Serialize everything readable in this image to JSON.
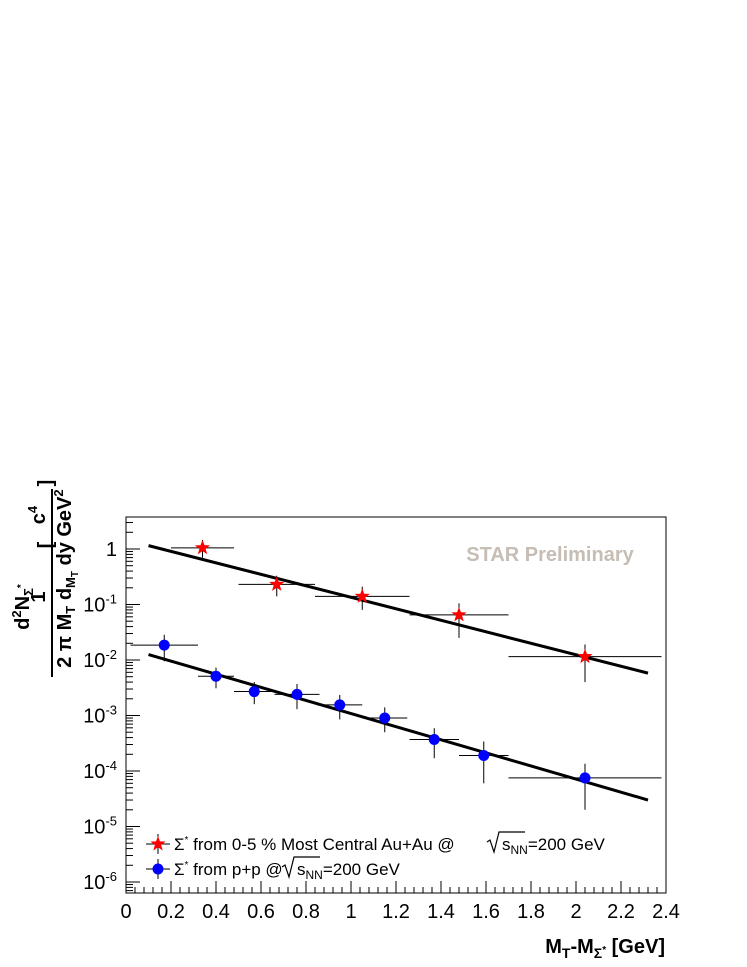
{
  "chart_data": {
    "type": "scatter",
    "title": "",
    "xlabel": "M_T-M_Σ* [GeV]",
    "ylabel": "1/(2π M_T) d²N_Σ*/(dM_T dy) [c⁴/GeV²]",
    "xlim": [
      0,
      2.4
    ],
    "ylim": [
      5e-07,
      4
    ],
    "log_y": true,
    "grid": false,
    "legend_position": "bottom-left",
    "x_ticks": [
      "0",
      "0.2",
      "0.4",
      "0.6",
      "0.8",
      "1",
      "1.2",
      "1.4",
      "1.6",
      "1.8",
      "2",
      "2.2",
      "2.4"
    ],
    "y_ticks": [
      {
        "base": "1",
        "exp": ""
      },
      {
        "base": "10",
        "exp": "-1"
      },
      {
        "base": "10",
        "exp": "-2"
      },
      {
        "base": "10",
        "exp": "-3"
      },
      {
        "base": "10",
        "exp": "-4"
      },
      {
        "base": "10",
        "exp": "-5"
      },
      {
        "base": "10",
        "exp": "-6"
      }
    ],
    "watermark": "STAR Preliminary",
    "series": [
      {
        "name": "Σ* from 0-5 % Most Central Au+Au @ √s_NN=200 GeV",
        "marker": "star",
        "color": "#ff0000",
        "points": [
          {
            "x": 0.34,
            "y": 1.05,
            "xerr": [
              0.14,
              0.14
            ],
            "yerr": [
              0.35,
              0.4
            ]
          },
          {
            "x": 0.67,
            "y": 0.23,
            "xerr": [
              0.17,
              0.17
            ],
            "yerr": [
              0.09,
              0.1
            ]
          },
          {
            "x": 1.05,
            "y": 0.14,
            "xerr": [
              0.21,
              0.21
            ],
            "yerr": [
              0.06,
              0.07
            ]
          },
          {
            "x": 1.48,
            "y": 0.065,
            "xerr": [
              0.22,
              0.22
            ],
            "yerr": [
              0.04,
              0.04
            ]
          },
          {
            "x": 2.04,
            "y": 0.0115,
            "xerr": [
              0.34,
              0.34
            ],
            "yerr": [
              0.0075,
              0.0075
            ]
          }
        ],
        "fit": {
          "x": [
            0.1,
            2.32
          ],
          "y": [
            1.15,
            0.0058
          ]
        }
      },
      {
        "name": "Σ* from p+p @ √s_NN=200 GeV",
        "marker": "circle",
        "color": "#0000ff",
        "points": [
          {
            "x": 0.17,
            "y": 0.0185,
            "xerr": [
              0.15,
              0.15
            ],
            "yerr": [
              0.009,
              0.01
            ]
          },
          {
            "x": 0.4,
            "y": 0.0051,
            "xerr": [
              0.08,
              0.08
            ],
            "yerr": [
              0.002,
              0.0022
            ]
          },
          {
            "x": 0.57,
            "y": 0.0027,
            "xerr": [
              0.09,
              0.09
            ],
            "yerr": [
              0.0011,
              0.0013
            ]
          },
          {
            "x": 0.76,
            "y": 0.0024,
            "xerr": [
              0.1,
              0.1
            ],
            "yerr": [
              0.0011,
              0.0013
            ]
          },
          {
            "x": 0.95,
            "y": 0.00155,
            "xerr": [
              0.1,
              0.1
            ],
            "yerr": [
              0.0007,
              0.0008
            ]
          },
          {
            "x": 1.15,
            "y": 0.0009,
            "xerr": [
              0.1,
              0.1
            ],
            "yerr": [
              0.0004,
              0.0005
            ]
          },
          {
            "x": 1.37,
            "y": 0.00037,
            "xerr": [
              0.11,
              0.11
            ],
            "yerr": [
              0.0002,
              0.00022
            ]
          },
          {
            "x": 1.59,
            "y": 0.00019,
            "xerr": [
              0.11,
              0.11
            ],
            "yerr": [
              0.00013,
              0.00015
            ]
          },
          {
            "x": 2.04,
            "y": 7.5e-05,
            "xerr": [
              0.34,
              0.34
            ],
            "yerr": [
              5.5e-05,
              6e-05
            ]
          }
        ],
        "fit": {
          "x": [
            0.1,
            2.32
          ],
          "y": [
            0.0125,
            3e-05
          ]
        }
      }
    ]
  }
}
